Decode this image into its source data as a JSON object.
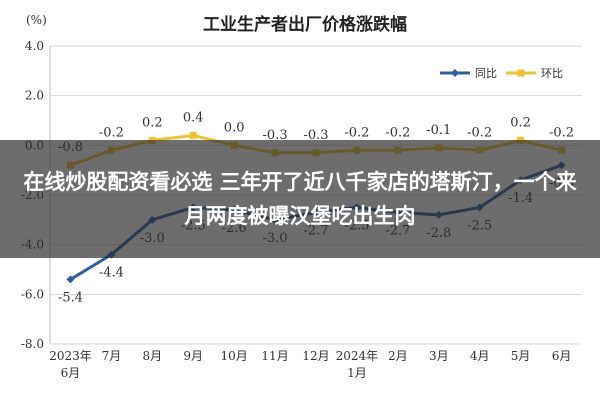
{
  "chart_data": {
    "type": "line",
    "title": "工业生产者出厂价格涨跌幅",
    "ylabel": "(%)",
    "ylim": [
      -8.0,
      4.0
    ],
    "yticks": [
      "4.0",
      "2.0",
      "0.0",
      "-2.0",
      "-4.0",
      "-6.0",
      "-8.0"
    ],
    "ytick_values": [
      4,
      2,
      0,
      -2,
      -4,
      -6,
      -8
    ],
    "categories": [
      "2023年\n6月",
      "7月",
      "8月",
      "9月",
      "10月",
      "11月",
      "12月",
      "2024年\n1月",
      "2月",
      "3月",
      "4月",
      "5月",
      "6月"
    ],
    "series": [
      {
        "name": "同比",
        "color": "#2e5e9e",
        "values": [
          -5.4,
          -4.4,
          -3.0,
          -2.5,
          -2.6,
          -3.0,
          -2.7,
          -2.5,
          -2.7,
          -2.8,
          -2.5,
          -1.4,
          -0.8
        ],
        "labels": [
          "-5.4",
          "-4.4",
          "-3.0",
          "-2.5",
          "-2.6",
          "-3.0",
          "-2.7",
          "-2.5",
          "-2.7",
          "-2.8",
          "-2.5",
          "-1.4",
          "-0.8"
        ]
      },
      {
        "name": "环比",
        "color": "#f2c12e",
        "values": [
          -0.8,
          -0.2,
          0.2,
          0.4,
          0.0,
          -0.3,
          -0.3,
          -0.2,
          -0.2,
          -0.1,
          -0.2,
          0.2,
          -0.2
        ],
        "labels": [
          "-0.8",
          "-0.2",
          "0.2",
          "0.4",
          "0.0",
          "-0.3",
          "-0.3",
          "-0.2",
          "-0.2",
          "-0.1",
          "-0.2",
          "0.2",
          "-0.2"
        ]
      }
    ],
    "grid": true,
    "legend": "top-right"
  },
  "overlay": {
    "headline": "在线炒股配资看必选 三年开了近八千家店的塔斯汀，一个来月两度被曝汉堡吃出生肉"
  }
}
